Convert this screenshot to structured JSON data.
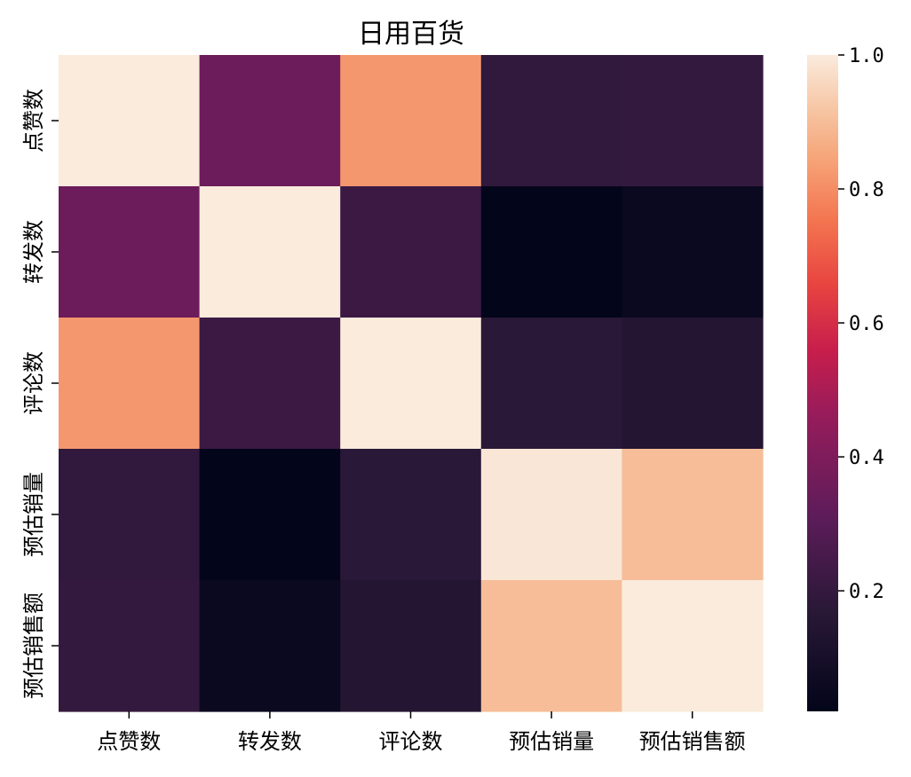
{
  "chart_data": {
    "type": "heatmap",
    "title": "日用百货",
    "xlabel": "",
    "ylabel": "",
    "x_categories": [
      "点赞数",
      "转发数",
      "评论数",
      "预估销量",
      "预估销售额"
    ],
    "y_categories": [
      "点赞数",
      "转发数",
      "评论数",
      "预估销量",
      "预估销售额"
    ],
    "values": [
      [
        1.0,
        0.35,
        0.82,
        0.19,
        0.2
      ],
      [
        0.35,
        1.0,
        0.22,
        0.02,
        0.05
      ],
      [
        0.82,
        0.22,
        1.0,
        0.17,
        0.15
      ],
      [
        0.19,
        0.02,
        0.17,
        0.99,
        0.9
      ],
      [
        0.2,
        0.05,
        0.15,
        0.9,
        1.0
      ]
    ],
    "colormap": "rocket",
    "color_range": [
      0.02,
      1.0
    ],
    "colorbar": {
      "ticks": [
        0.2,
        0.4,
        0.6,
        0.8,
        1.0
      ],
      "tick_labels": [
        "0.2",
        "0.4",
        "0.6",
        "0.8",
        "1.0"
      ],
      "placement": "right"
    },
    "grid": false
  }
}
